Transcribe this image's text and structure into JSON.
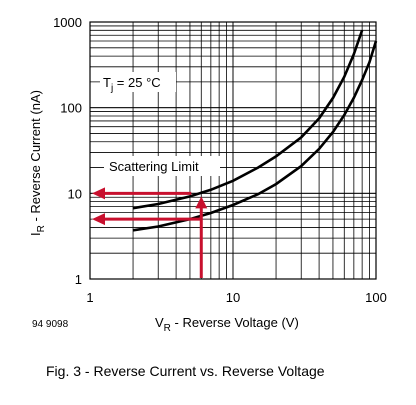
{
  "chart_data": {
    "type": "line",
    "xscale": "log",
    "yscale": "log",
    "xlim": [
      1,
      100
    ],
    "ylim": [
      1,
      1000
    ],
    "x_ticks": [
      "1",
      "10",
      "100"
    ],
    "y_ticks": [
      "1",
      "10",
      "100",
      "1000"
    ],
    "grid": true,
    "xlabel": {
      "main": "V",
      "sub": "R",
      "rest": " - Reverse Voltage (V)"
    },
    "ylabel": {
      "main": "I",
      "sub": "R",
      "rest": " - Reverse Current (nA)"
    },
    "annotations": {
      "tj": {
        "main": "T",
        "sub": "j",
        "rest": " = 25 °C"
      },
      "scattering": "Scattering Limit",
      "figure_code": "94 9098"
    },
    "series": [
      {
        "x": [
          2,
          3,
          5,
          7,
          10,
          15,
          20,
          30,
          40,
          50,
          60,
          70,
          80
        ],
        "y": [
          6.7,
          7.5,
          9.2,
          11,
          14,
          20,
          27,
          45,
          75,
          130,
          230,
          420,
          800
        ]
      },
      {
        "x": [
          2,
          3,
          5,
          7,
          10,
          15,
          20,
          30,
          40,
          50,
          60,
          70,
          80,
          90,
          100
        ],
        "y": [
          3.7,
          4.1,
          5,
          5.9,
          7.3,
          9.8,
          12.8,
          20.8,
          33,
          52,
          82,
          130,
          210,
          340,
          600
        ]
      }
    ],
    "markers": {
      "voltage": 6,
      "current_upper": 10,
      "current_lower": 5
    },
    "colors": {
      "curve": "#000000",
      "marker": "#c8102e"
    }
  },
  "caption": "Fig. 3 - Reverse Current vs. Reverse Voltage"
}
